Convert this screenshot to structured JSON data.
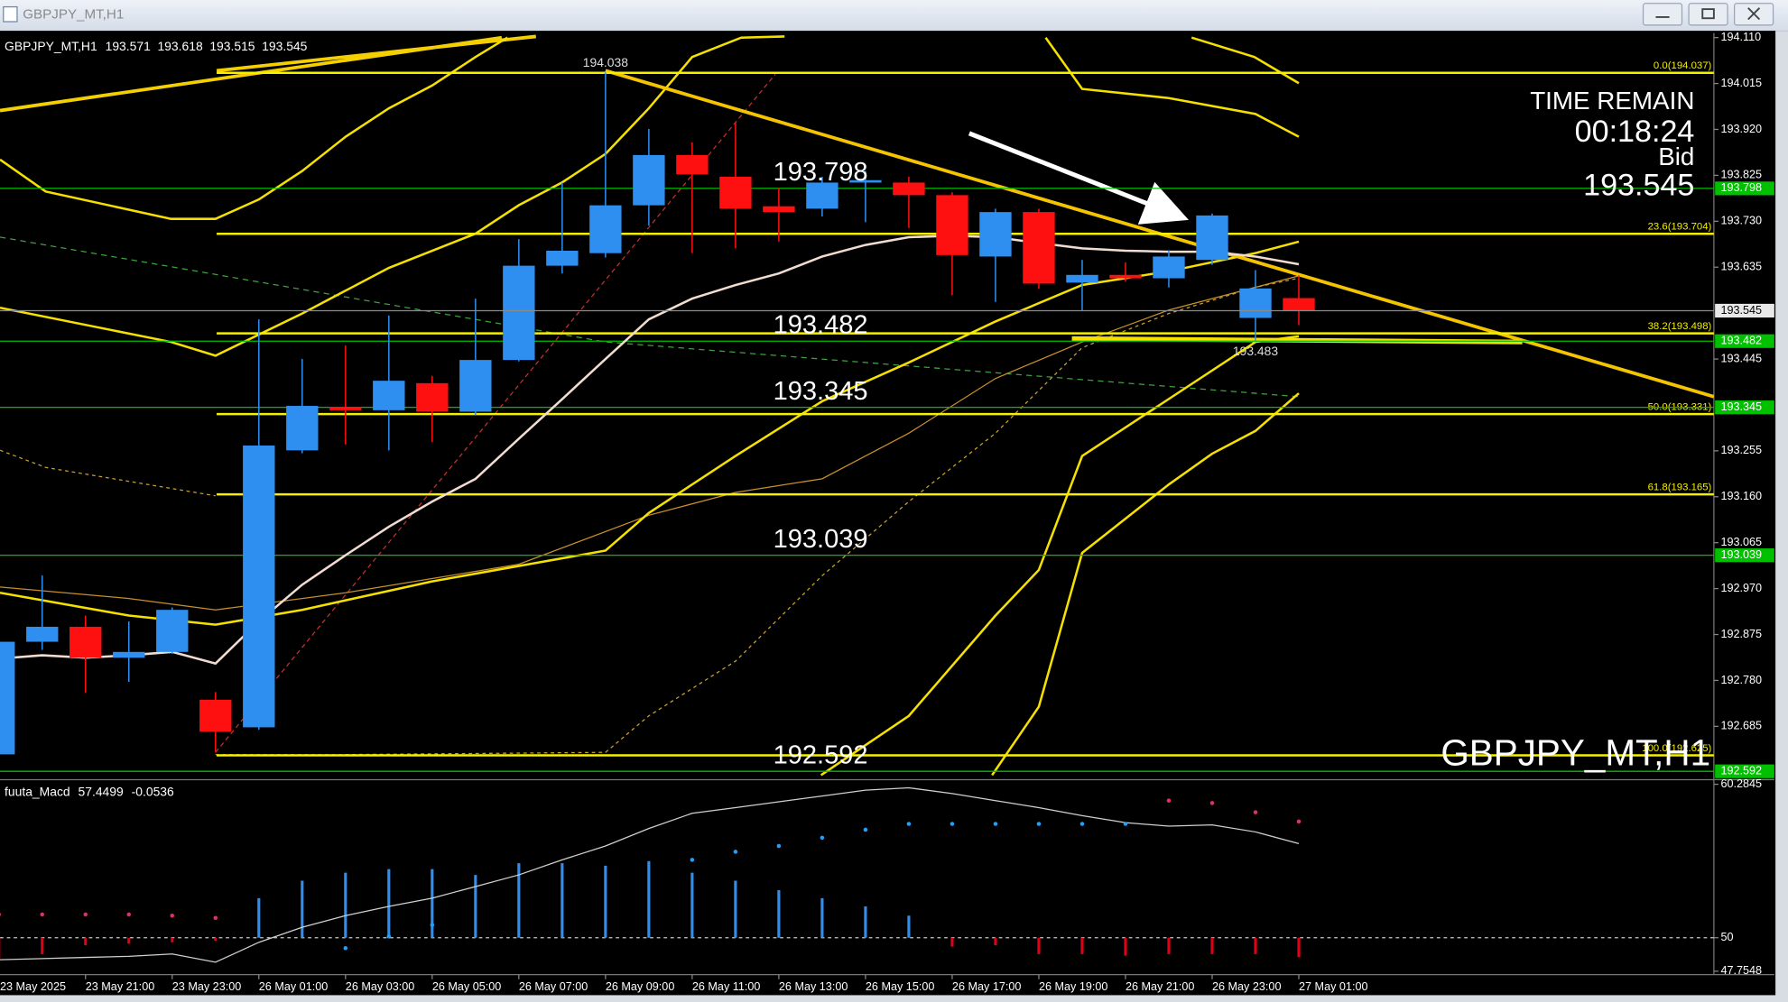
{
  "timer": {
    "label": "TIME REMAIN",
    "value": "00:18:24",
    "bid_label": "Bid"
  },
  "chart_data": [
    {
      "type": "candlestick",
      "title": "GBPJPY_MT,H1",
      "categories": [
        "23 May 2025",
        null,
        "23 May 21:00",
        null,
        "23 May 23:00",
        null,
        "26 May 01:00",
        null,
        "26 May 03:00",
        null,
        "26 May 05:00",
        null,
        "26 May 07:00",
        null,
        "26 May 09:00",
        null,
        "26 May 11:00",
        null,
        "26 May 13:00",
        null,
        "26 May 15:00",
        null,
        "26 May 17:00",
        null,
        "26 May 19:00",
        null,
        "26 May 21:00",
        null,
        "26 May 23:00",
        null,
        "27 May 01:00"
      ],
      "open": [
        192.627,
        192.86,
        192.891,
        192.827,
        192.839,
        192.74,
        192.683,
        193.256,
        193.346,
        193.339,
        193.395,
        193.336,
        193.443,
        193.638,
        193.664,
        193.763,
        193.867,
        193.822,
        193.761,
        193.756,
        193.81,
        193.81,
        193.784,
        193.657,
        193.749,
        193.603,
        193.619,
        193.612,
        193.65,
        193.53,
        193.571
      ],
      "high": [
        192.87,
        192.997,
        192.914,
        192.902,
        192.931,
        192.756,
        193.527,
        193.445,
        193.473,
        193.535,
        193.41,
        193.57,
        193.693,
        193.81,
        194.038,
        193.921,
        193.893,
        193.935,
        193.799,
        193.822,
        193.834,
        193.822,
        193.79,
        193.756,
        193.756,
        193.65,
        193.645,
        193.67,
        193.746,
        193.629,
        193.618
      ],
      "low": [
        192.62,
        192.843,
        192.754,
        192.777,
        192.835,
        192.631,
        192.678,
        193.25,
        193.268,
        193.256,
        193.273,
        193.329,
        193.44,
        193.622,
        193.655,
        193.721,
        193.664,
        193.674,
        193.688,
        193.74,
        193.728,
        193.716,
        193.577,
        193.563,
        193.59,
        193.544,
        193.605,
        193.593,
        193.64,
        193.483,
        193.515
      ],
      "close": [
        192.86,
        192.891,
        192.827,
        192.839,
        192.926,
        192.674,
        193.266,
        193.348,
        193.339,
        193.4,
        193.336,
        193.443,
        193.638,
        193.669,
        193.763,
        193.867,
        193.827,
        193.756,
        193.749,
        193.81,
        193.815,
        193.784,
        193.66,
        193.749,
        193.601,
        193.619,
        193.612,
        193.657,
        193.742,
        193.591,
        193.545
      ],
      "up_color": "#2e8ff0",
      "down_color": "#ff1010",
      "lines": [
        {
          "color": "#f2dcd0",
          "values": [
            192.825,
            192.832,
            192.827,
            192.832,
            192.839,
            192.815,
            192.902,
            192.978,
            193.039,
            193.098,
            193.15,
            193.197,
            193.28,
            193.362,
            193.445,
            193.527,
            193.57,
            193.598,
            193.622,
            193.657,
            193.681,
            193.697,
            193.7,
            193.697,
            193.685,
            193.674,
            193.669,
            193.667,
            193.667,
            193.657,
            193.641
          ]
        }
      ],
      "ylim": [
        192.584,
        194.117
      ],
      "yticks": [
        {
          "value": 194.11,
          "label": "194.110"
        },
        194.015,
        {
          "value": 193.92,
          "label": "193.920"
        },
        193.825,
        {
          "value": 193.73,
          "label": "193.730"
        },
        193.635,
        193.445,
        193.255,
        {
          "value": 193.16,
          "label": "193.160"
        },
        193.065,
        {
          "value": 192.97,
          "label": "192.970"
        },
        192.875,
        {
          "value": 192.78,
          "label": "192.780"
        },
        192.685
      ],
      "levels": [
        193.798,
        193.482,
        193.345,
        193.039,
        192.592
      ],
      "level_color": "#00c000",
      "fibs": [
        {
          "value": 194.037,
          "label": "0.0(194.037)"
        },
        {
          "value": 193.704,
          "label": "23.6(193.704)"
        },
        {
          "value": 193.498,
          "label": "38.2(193.498)"
        },
        {
          "value": 193.331,
          "label": "50.0(193.331)"
        },
        {
          "value": 193.165,
          "label": "61.8(193.165)"
        },
        {
          "value": 192.625,
          "label": "100.0(192.625)"
        }
      ],
      "fib_color": "#f5f000",
      "price_line_color": "#8a8a8a"
    },
    {
      "type": "macd",
      "title": "fuuta_Macd",
      "readouts": [
        57.4499,
        -0.0536
      ],
      "histogram": [
        48.6,
        48.9,
        49.5,
        49.6,
        49.7,
        49.8,
        52.65,
        53.82,
        54.36,
        54.6,
        54.6,
        54.21,
        54.99,
        54.99,
        54.83,
        55.14,
        54.36,
        53.82,
        53.19,
        52.65,
        52.1,
        51.48,
        49.4,
        49.5,
        48.9,
        48.9,
        48.8,
        48.9,
        48.9,
        48.9,
        48.7
      ],
      "signal": [
        48.52,
        48.6,
        48.68,
        48.75,
        48.91,
        48.36,
        49.69,
        50.7,
        51.48,
        52.1,
        52.65,
        53.43,
        54.21,
        55.22,
        56.15,
        57.32,
        58.34,
        58.72,
        59.11,
        59.5,
        59.89,
        60.05,
        59.66,
        59.19,
        58.72,
        58.18,
        57.71,
        57.48,
        57.56,
        57.09,
        56.31
      ],
      "dots": [
        51.56,
        51.56,
        51.56,
        51.56,
        51.48,
        51.33,
        null,
        null,
        49.3,
        50.08,
        50.86,
        null,
        null,
        null,
        null,
        null,
        55.22,
        55.76,
        56.15,
        56.7,
        57.24,
        57.63,
        57.63,
        57.63,
        57.63,
        57.63,
        57.63,
        59.19,
        59.03,
        58.41,
        57.79
      ],
      "dot_colors": [
        "#e0306a",
        "#e0306a",
        "#e0306a",
        "#e0306a",
        "#e0306a",
        "#e0306a",
        null,
        null,
        "#1ea0ff",
        "#1ea0ff",
        "#1ea0ff",
        null,
        null,
        null,
        null,
        null,
        "#1ea0ff",
        "#1ea0ff",
        "#1ea0ff",
        "#1ea0ff",
        "#1ea0ff",
        "#1ea0ff",
        "#1ea0ff",
        "#1ea0ff",
        "#1ea0ff",
        "#1ea0ff",
        "#1ea0ff",
        "#e0306a",
        "#e0306a",
        "#e0306a",
        "#e0306a"
      ],
      "baseline": 50,
      "up_color": "#2e8ff0",
      "down_color": "#e0001a",
      "signal_color": "#cfcfcf",
      "ylim": [
        47.7548,
        60.2845
      ],
      "yticks": [
        60.2845,
        50,
        47.7548
      ]
    }
  ]
}
